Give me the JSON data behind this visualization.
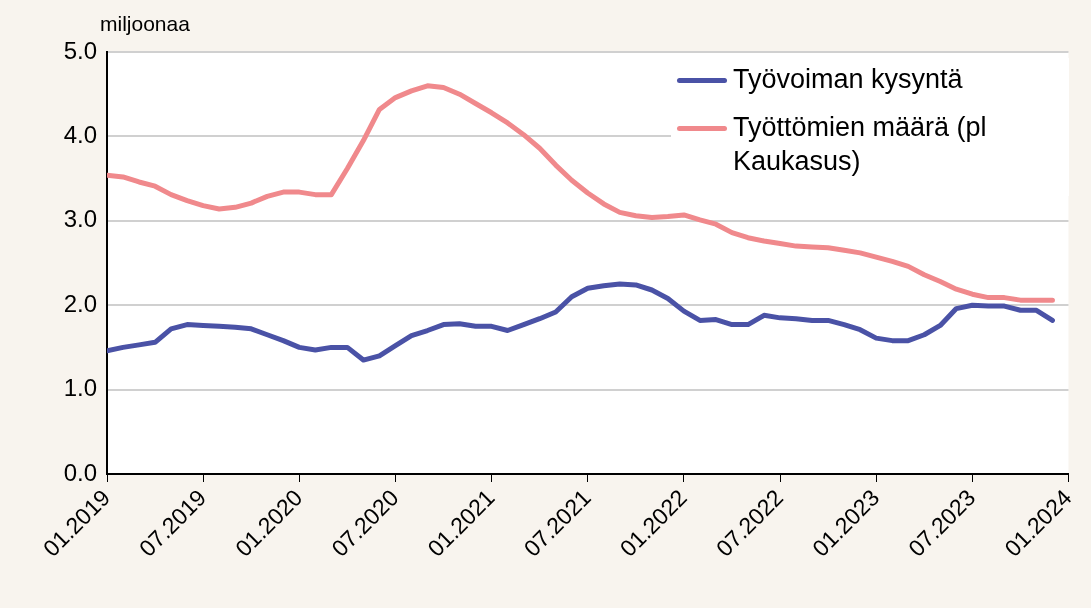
{
  "chart_data": {
    "type": "line",
    "ylabel": "miljoonaa",
    "x": [
      "2019-01",
      "2019-02",
      "2019-03",
      "2019-04",
      "2019-05",
      "2019-06",
      "2019-07",
      "2019-08",
      "2019-09",
      "2019-10",
      "2019-11",
      "2019-12",
      "2020-01",
      "2020-02",
      "2020-03",
      "2020-04",
      "2020-05",
      "2020-06",
      "2020-07",
      "2020-08",
      "2020-09",
      "2020-10",
      "2020-11",
      "2020-12",
      "2021-01",
      "2021-02",
      "2021-03",
      "2021-04",
      "2021-05",
      "2021-06",
      "2021-07",
      "2021-08",
      "2021-09",
      "2021-10",
      "2021-11",
      "2021-12",
      "2022-01",
      "2022-02",
      "2022-03",
      "2022-04",
      "2022-05",
      "2022-06",
      "2022-07",
      "2022-08",
      "2022-09",
      "2022-10",
      "2022-11",
      "2022-12",
      "2023-01",
      "2023-02",
      "2023-03",
      "2023-04",
      "2023-05",
      "2023-06",
      "2023-07",
      "2023-08",
      "2023-09",
      "2023-10",
      "2023-11",
      "2023-12"
    ],
    "series": [
      {
        "name": "Työvoiman kysyntä",
        "color": "#4a52a6",
        "values": [
          1.46,
          1.5,
          1.53,
          1.56,
          1.72,
          1.77,
          1.76,
          1.75,
          1.74,
          1.72,
          1.65,
          1.58,
          1.5,
          1.47,
          1.5,
          1.5,
          1.35,
          1.4,
          1.52,
          1.64,
          1.7,
          1.77,
          1.78,
          1.75,
          1.75,
          1.7,
          1.77,
          1.84,
          1.92,
          2.1,
          2.2,
          2.23,
          2.25,
          2.24,
          2.18,
          2.08,
          1.93,
          1.82,
          1.83,
          1.77,
          1.77,
          1.88,
          1.85,
          1.84,
          1.82,
          1.82,
          1.77,
          1.71,
          1.61,
          1.58,
          1.58,
          1.65,
          1.76,
          1.96,
          2.0,
          1.99,
          1.99,
          1.94,
          1.94,
          1.82
        ]
      },
      {
        "name": "Työttömien määrä (pl Kaukasus)",
        "color": "#f0898c",
        "values": [
          3.54,
          3.52,
          3.46,
          3.41,
          3.31,
          3.24,
          3.18,
          3.14,
          3.16,
          3.21,
          3.29,
          3.34,
          3.34,
          3.31,
          3.31,
          3.62,
          3.95,
          4.32,
          4.46,
          4.54,
          4.6,
          4.58,
          4.5,
          4.39,
          4.28,
          4.16,
          4.02,
          3.86,
          3.66,
          3.48,
          3.33,
          3.2,
          3.1,
          3.06,
          3.04,
          3.05,
          3.07,
          3.01,
          2.96,
          2.86,
          2.8,
          2.76,
          2.73,
          2.7,
          2.69,
          2.68,
          2.65,
          2.62,
          2.57,
          2.52,
          2.46,
          2.36,
          2.28,
          2.19,
          2.13,
          2.09,
          2.09,
          2.06,
          2.06,
          2.06
        ]
      }
    ],
    "xlim": [
      "2019-01",
      "2024-01"
    ],
    "xticks": [
      {
        "value": "2019-01",
        "label": "01.2019"
      },
      {
        "value": "2019-07",
        "label": "07.2019"
      },
      {
        "value": "2020-01",
        "label": "01.2020"
      },
      {
        "value": "2020-07",
        "label": "07.2020"
      },
      {
        "value": "2021-01",
        "label": "01.2021"
      },
      {
        "value": "2021-07",
        "label": "07.2021"
      },
      {
        "value": "2022-01",
        "label": "01.2022"
      },
      {
        "value": "2022-07",
        "label": "07.2022"
      },
      {
        "value": "2023-01",
        "label": "01.2023"
      },
      {
        "value": "2023-07",
        "label": "07.2023"
      },
      {
        "value": "2024-01",
        "label": "01.2024"
      }
    ],
    "ylim": [
      0,
      5
    ],
    "yticks": [
      {
        "value": 0,
        "label": "0.0"
      },
      {
        "value": 1,
        "label": "1.0"
      },
      {
        "value": 2,
        "label": "2.0"
      },
      {
        "value": 3,
        "label": "3.0"
      },
      {
        "value": 4,
        "label": "4.0"
      },
      {
        "value": 5,
        "label": "5.0"
      }
    ],
    "grid": "y",
    "legend": "top right",
    "marker": "none",
    "line_style": "solid"
  }
}
